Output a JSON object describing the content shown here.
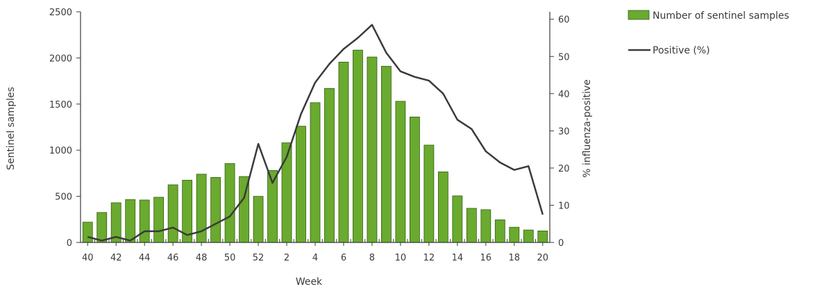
{
  "chart_data": {
    "type": "bar",
    "x_label": "Week",
    "y_left_label": "Sentinel samples",
    "y_right_label": "% influenza-positive",
    "weeks": [
      40,
      41,
      42,
      43,
      44,
      45,
      46,
      47,
      48,
      49,
      50,
      51,
      52,
      1,
      2,
      3,
      4,
      5,
      6,
      7,
      8,
      9,
      10,
      11,
      12,
      13,
      14,
      15,
      16,
      17,
      18,
      19,
      20
    ],
    "x_tick_labels": [
      "40",
      "42",
      "44",
      "46",
      "48",
      "50",
      "52",
      "2",
      "4",
      "6",
      "8",
      "10",
      "12",
      "14",
      "16",
      "18",
      "20"
    ],
    "y_left_ticks": [
      "0",
      "500",
      "1000",
      "1500",
      "2000",
      "2500"
    ],
    "y_left_range": [
      0,
      2500
    ],
    "y_right_ticks": [
      "0",
      "10",
      "20",
      "30",
      "40",
      "50",
      "60"
    ],
    "y_right_range": [
      0,
      62
    ],
    "series": [
      {
        "name": "Number of sentinel samples",
        "kind": "bar",
        "axis": "left",
        "color": "#6aaa2e",
        "values": [
          220,
          325,
          430,
          465,
          460,
          490,
          625,
          675,
          740,
          705,
          855,
          715,
          500,
          780,
          1080,
          1260,
          1515,
          1670,
          1955,
          2085,
          2010,
          1910,
          1530,
          1360,
          1055,
          765,
          505,
          370,
          355,
          245,
          165,
          135,
          125
        ]
      },
      {
        "name": "Positive (%)",
        "kind": "line",
        "axis": "right",
        "color": "#3a3a3a",
        "values": [
          1.5,
          0.5,
          1.5,
          0.5,
          3,
          3,
          4,
          2,
          3,
          5,
          7,
          12,
          26.5,
          16,
          23,
          34.5,
          43,
          48,
          52,
          55,
          58.5,
          51,
          46,
          44.5,
          43.5,
          40,
          33,
          30.5,
          24.5,
          21.5,
          19.5,
          20.5,
          7.5
        ]
      }
    ],
    "legend_position": "top-right",
    "grid": false
  }
}
